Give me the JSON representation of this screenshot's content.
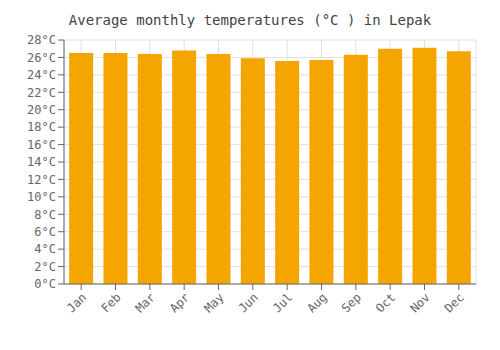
{
  "chart_data": {
    "type": "bar",
    "title": "Average monthly temperatures (°C ) in Lepak",
    "categories": [
      "Jan",
      "Feb",
      "Mar",
      "Apr",
      "May",
      "Jun",
      "Jul",
      "Aug",
      "Sep",
      "Oct",
      "Nov",
      "Dec"
    ],
    "values": [
      26.5,
      26.5,
      26.4,
      26.8,
      26.4,
      25.9,
      25.6,
      25.7,
      26.3,
      27.0,
      27.1,
      26.7
    ],
    "color": "#F5A500",
    "ylim": [
      0,
      28
    ],
    "yticks": [
      {
        "value": 0,
        "label": "0°C"
      },
      {
        "value": 2,
        "label": "2°C"
      },
      {
        "value": 4,
        "label": "4°C"
      },
      {
        "value": 6,
        "label": "6°C"
      },
      {
        "value": 8,
        "label": "8°C"
      },
      {
        "value": 10,
        "label": "10°C"
      },
      {
        "value": 12,
        "label": "12°C"
      },
      {
        "value": 14,
        "label": "14°C"
      },
      {
        "value": 16,
        "label": "16°C"
      },
      {
        "value": 18,
        "label": "18°C"
      },
      {
        "value": 20,
        "label": "20°C"
      },
      {
        "value": 22,
        "label": "22°C"
      },
      {
        "value": 24,
        "label": "24°C"
      },
      {
        "value": 26,
        "label": "26°C"
      },
      {
        "value": 28,
        "label": "28°C"
      }
    ],
    "grid": true
  }
}
